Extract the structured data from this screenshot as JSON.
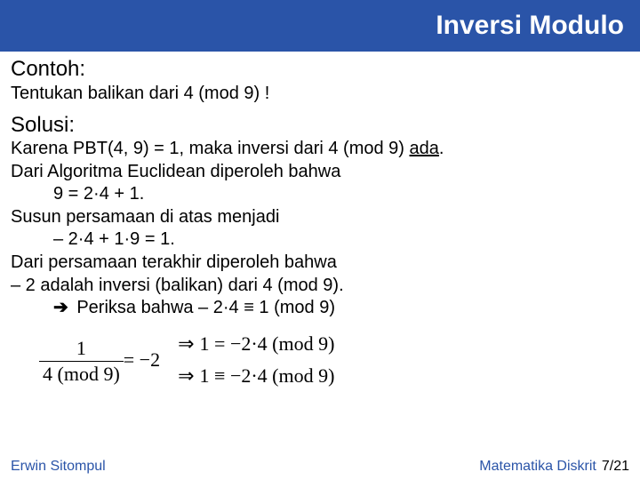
{
  "header": {
    "title": "Inversi Modulo"
  },
  "sections": {
    "example_label": "Contoh:",
    "problem": "Tentukan balikan dari 4 (mod 9) !",
    "solution_label": "Solusi:",
    "lines": {
      "l1a": "Karena PBT(4, 9) = 1, maka inversi dari 4 (mod 9) ",
      "l1b": "ada",
      "l1c": ".",
      "l2": "Dari Algoritma Euclidean diperoleh bahwa",
      "l3": "9 = 2·4 + 1.",
      "l4": "Susun persamaan di atas  menjadi",
      "l5": "– 2·4 + 1·9 = 1.",
      "l6": "Dari persamaan terakhir diperoleh bahwa",
      "l7": "– 2 adalah inversi (balikan) dari 4 (mod 9).",
      "l8_arrow": "➔",
      "l8": " Periksa bahwa  – 2·4 ≡ 1 (mod 9)"
    }
  },
  "math": {
    "frac_num": "1",
    "frac_den": "4 (mod 9)",
    "eq_rhs": " = −2",
    "imply1": "1 = −2·4 (mod 9)",
    "imply2": "1 ≡ −2·4 (mod 9)",
    "arrow": "⇒"
  },
  "footer": {
    "left": "Erwin Sitompul",
    "right_label": "Matematika Diskrit",
    "page": "7/21"
  },
  "colors": {
    "header_bg": "#2a54a8",
    "accent": "#2a54a8"
  }
}
